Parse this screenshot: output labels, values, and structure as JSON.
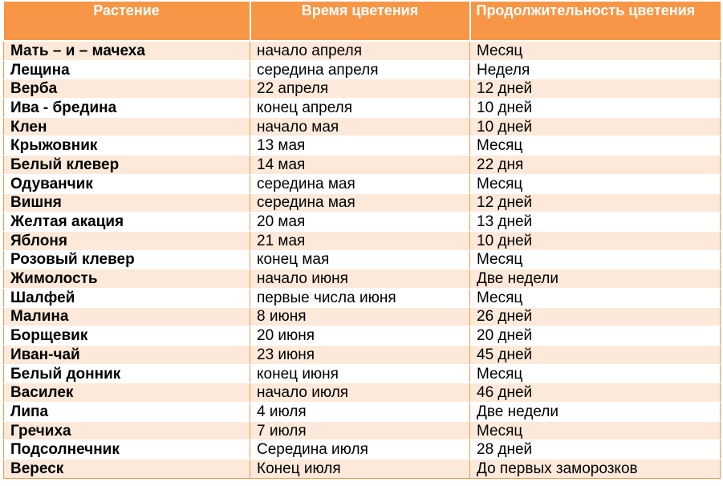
{
  "table": {
    "headers": [
      "Растение",
      "Время цветения",
      "Продолжительность цветения"
    ],
    "rows": [
      [
        "Мать – и – мачеха",
        "начало апреля",
        "Месяц"
      ],
      [
        "Лещина",
        "середина апреля",
        "Неделя"
      ],
      [
        "Верба",
        "22 апреля",
        "12 дней"
      ],
      [
        "Ива - бредина",
        "конец апреля",
        "10 дней"
      ],
      [
        "Клен",
        "начало мая",
        "10 дней"
      ],
      [
        "Крыжовник",
        "13 мая",
        "Месяц"
      ],
      [
        "Белый клевер",
        "14 мая",
        "22 дня"
      ],
      [
        "Одуванчик",
        "середина мая",
        "Месяц"
      ],
      [
        "Вишня",
        "середина мая",
        "12 дней"
      ],
      [
        "Желтая акация",
        "20 мая",
        "13 дней"
      ],
      [
        "Яблоня",
        "21 мая",
        "10 дней"
      ],
      [
        "Розовый клевер",
        "конец мая",
        "Месяц"
      ],
      [
        "Жимолость",
        "начало июня",
        "Две недели"
      ],
      [
        "Шалфей",
        "первые числа июня",
        "Месяц"
      ],
      [
        "Малина",
        "8 июня",
        "26 дней"
      ],
      [
        "Борщевик",
        "20 июня",
        "20 дней"
      ],
      [
        "Иван-чай",
        "23 июня",
        "45 дней"
      ],
      [
        "Белый донник",
        "конец июня",
        "Месяц"
      ],
      [
        "Василек",
        "начало июля",
        "46 дней"
      ],
      [
        "Липа",
        "4 июля",
        "Две недели"
      ],
      [
        "Гречиха",
        "7 июля",
        "Месяц"
      ],
      [
        "Подсолнечник",
        "Середина июля",
        "28 дней"
      ],
      [
        "Вереск",
        "Конец июля",
        "До первых заморозков"
      ]
    ]
  },
  "colors": {
    "header_bg": "#f79646",
    "header_text": "#ffffff",
    "stripe": "#fde9d9",
    "row": "#ffffff"
  }
}
